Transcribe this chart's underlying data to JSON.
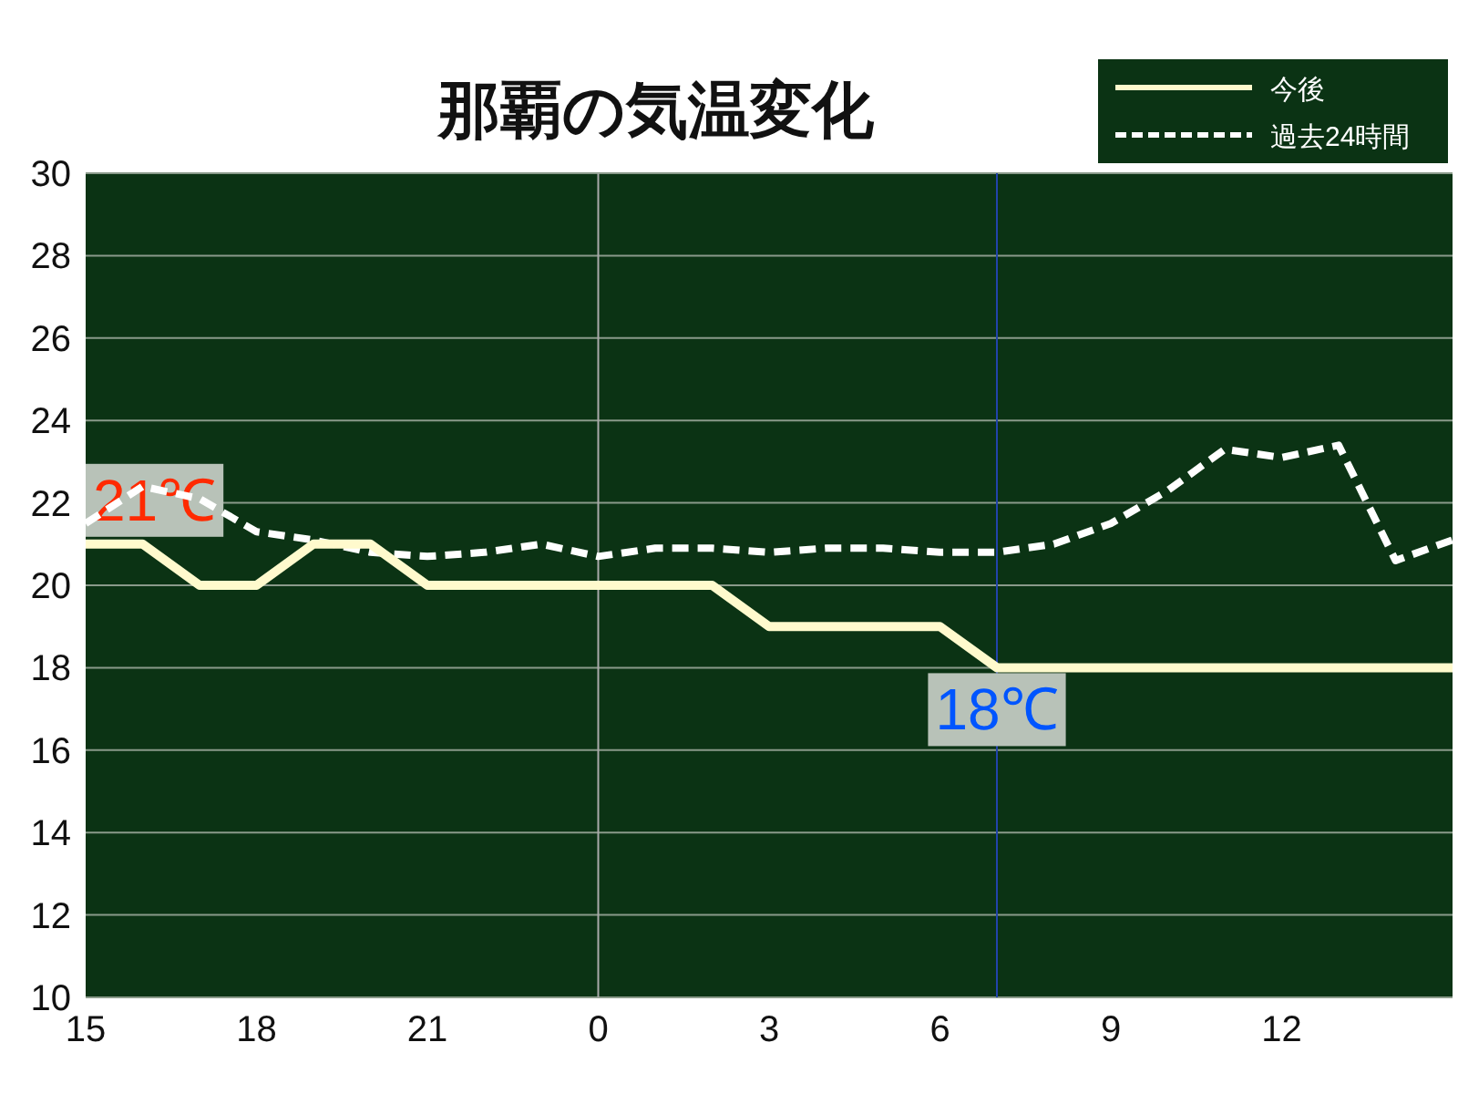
{
  "chart_data": {
    "type": "line",
    "title": "那覇の気温変化",
    "categories": [
      "15",
      null,
      null,
      "18",
      null,
      null,
      "21",
      null,
      null,
      "0",
      null,
      null,
      "3",
      null,
      null,
      "6",
      null,
      null,
      "9",
      null,
      null,
      "12",
      null,
      null,
      null
    ],
    "series": [
      {
        "name": "今後",
        "color": "#fffacd",
        "line_style": "solid",
        "values": [
          21,
          21,
          20,
          20,
          21,
          21,
          20,
          20,
          20,
          20,
          20,
          20,
          19,
          19,
          19,
          19,
          18,
          18,
          18,
          18,
          18,
          18,
          18,
          18,
          18
        ]
      },
      {
        "name": "過去24時間",
        "color": "#ffffff",
        "line_style": "dashed",
        "values": [
          21.5,
          22.4,
          22.1,
          21.3,
          21.1,
          20.8,
          20.7,
          20.8,
          21.0,
          20.7,
          20.9,
          20.9,
          20.8,
          20.9,
          20.9,
          20.8,
          20.8,
          21.0,
          21.5,
          22.3,
          23.3,
          23.1,
          23.4,
          20.6,
          21.1
        ]
      }
    ],
    "ylim": [
      10,
      30
    ],
    "yticks": [
      10,
      12,
      14,
      16,
      18,
      20,
      22,
      24,
      26,
      28,
      30
    ],
    "grid": "y",
    "legend": "top right",
    "ref_lines": [
      {
        "axis": "x",
        "value": "0",
        "color": "#aaaaaa"
      },
      {
        "axis": "x",
        "value": null,
        "color": "#2244aa"
      }
    ],
    "annotations": [
      {
        "text": "21℃",
        "x": "15",
        "y": 21
      },
      {
        "text": "18℃",
        "y": 18
      }
    ]
  }
}
